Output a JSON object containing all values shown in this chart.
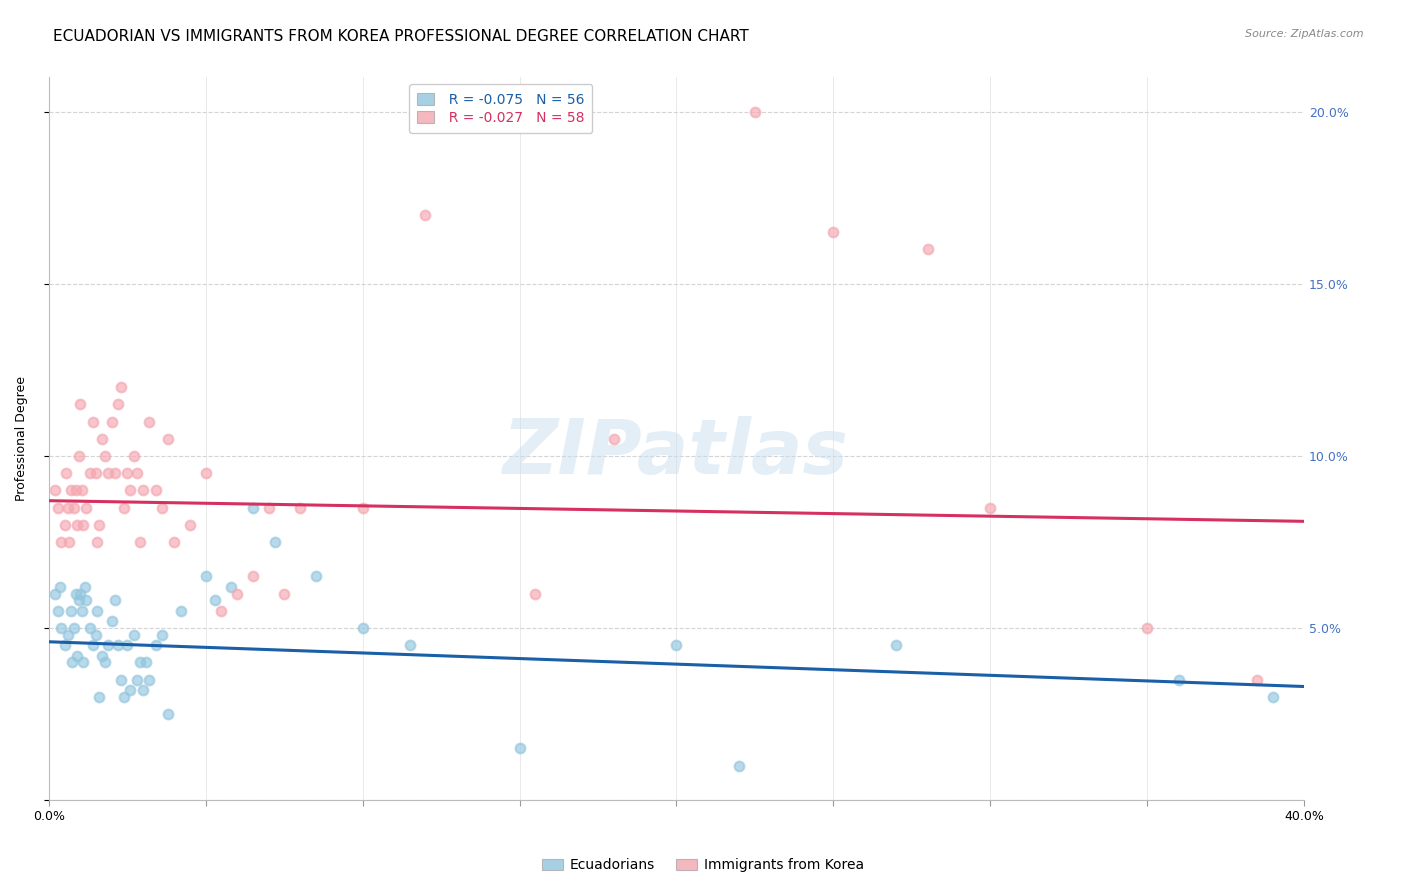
{
  "title": "ECUADORIAN VS IMMIGRANTS FROM KOREA PROFESSIONAL DEGREE CORRELATION CHART",
  "source": "Source: ZipAtlas.com",
  "ylabel": "Professional Degree",
  "xlim": [
    0.0,
    40.0
  ],
  "ylim": [
    0.0,
    21.0
  ],
  "yticks": [
    0.0,
    5.0,
    10.0,
    15.0,
    20.0
  ],
  "ytick_labels_right": [
    "",
    "5.0%",
    "10.0%",
    "15.0%",
    "20.0%"
  ],
  "xtick_minor_positions": [
    0,
    5,
    10,
    15,
    20,
    25,
    30,
    35,
    40
  ],
  "xtick_label_left": "0.0%",
  "xtick_label_right": "40.0%",
  "legend_blue_r": "R = -0.075",
  "legend_blue_n": "N = 56",
  "legend_pink_r": "R = -0.027",
  "legend_pink_n": "N = 58",
  "legend_blue_label": "Ecuadorians",
  "legend_pink_label": "Immigrants from Korea",
  "blue_color": "#92c5de",
  "pink_color": "#f4a6b0",
  "trend_blue_color": "#1a5fa8",
  "trend_pink_color": "#d63060",
  "watermark_text": "ZIPatlas",
  "blue_x": [
    0.2,
    0.3,
    0.35,
    0.4,
    0.5,
    0.6,
    0.7,
    0.75,
    0.8,
    0.85,
    0.9,
    0.95,
    1.0,
    1.05,
    1.1,
    1.15,
    1.2,
    1.3,
    1.4,
    1.5,
    1.55,
    1.6,
    1.7,
    1.8,
    1.9,
    2.0,
    2.1,
    2.2,
    2.3,
    2.4,
    2.5,
    2.6,
    2.7,
    2.8,
    2.9,
    3.0,
    3.1,
    3.2,
    3.4,
    3.6,
    3.8,
    4.2,
    5.0,
    5.3,
    5.8,
    6.5,
    7.2,
    8.5,
    10.0,
    11.5,
    15.0,
    20.0,
    22.0,
    27.0,
    36.0,
    39.0
  ],
  "blue_y": [
    6.0,
    5.5,
    6.2,
    5.0,
    4.5,
    4.8,
    5.5,
    4.0,
    5.0,
    6.0,
    4.2,
    5.8,
    6.0,
    5.5,
    4.0,
    6.2,
    5.8,
    5.0,
    4.5,
    4.8,
    5.5,
    3.0,
    4.2,
    4.0,
    4.5,
    5.2,
    5.8,
    4.5,
    3.5,
    3.0,
    4.5,
    3.2,
    4.8,
    3.5,
    4.0,
    3.2,
    4.0,
    3.5,
    4.5,
    4.8,
    2.5,
    5.5,
    6.5,
    5.8,
    6.2,
    8.5,
    7.5,
    6.5,
    5.0,
    4.5,
    1.5,
    4.5,
    1.0,
    4.5,
    3.5,
    3.0
  ],
  "pink_x": [
    0.2,
    0.3,
    0.4,
    0.5,
    0.55,
    0.6,
    0.65,
    0.7,
    0.8,
    0.85,
    0.9,
    0.95,
    1.0,
    1.05,
    1.1,
    1.2,
    1.3,
    1.4,
    1.5,
    1.55,
    1.6,
    1.7,
    1.8,
    1.9,
    2.0,
    2.1,
    2.2,
    2.3,
    2.4,
    2.5,
    2.6,
    2.7,
    2.8,
    2.9,
    3.0,
    3.2,
    3.4,
    3.6,
    3.8,
    4.0,
    4.5,
    5.0,
    5.5,
    6.0,
    6.5,
    7.0,
    7.5,
    8.0,
    10.0,
    12.0,
    15.5,
    18.0,
    22.5,
    25.0,
    28.0,
    30.0,
    35.0,
    38.5
  ],
  "pink_y": [
    9.0,
    8.5,
    7.5,
    8.0,
    9.5,
    8.5,
    7.5,
    9.0,
    8.5,
    9.0,
    8.0,
    10.0,
    11.5,
    9.0,
    8.0,
    8.5,
    9.5,
    11.0,
    9.5,
    7.5,
    8.0,
    10.5,
    10.0,
    9.5,
    11.0,
    9.5,
    11.5,
    12.0,
    8.5,
    9.5,
    9.0,
    10.0,
    9.5,
    7.5,
    9.0,
    11.0,
    9.0,
    8.5,
    10.5,
    7.5,
    8.0,
    9.5,
    5.5,
    6.0,
    6.5,
    8.5,
    6.0,
    8.5,
    8.5,
    17.0,
    6.0,
    10.5,
    20.0,
    16.5,
    16.0,
    8.5,
    5.0,
    3.5
  ],
  "trend_blue_x0": 0.0,
  "trend_blue_x1": 40.0,
  "trend_blue_y0": 4.6,
  "trend_blue_y1": 3.3,
  "trend_pink_x0": 0.0,
  "trend_pink_x1": 40.0,
  "trend_pink_y0": 8.7,
  "trend_pink_y1": 8.1,
  "bg_color": "#ffffff",
  "grid_color": "#d0d0d0",
  "title_fontsize": 11,
  "axis_label_fontsize": 9,
  "tick_fontsize": 9,
  "marker_size": 50,
  "marker_linewidth": 1.5
}
